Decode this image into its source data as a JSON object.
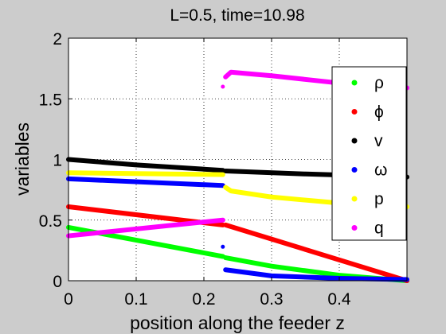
{
  "chart_data": {
    "type": "scatter",
    "title": "L=0.5, time=10.98",
    "xlabel": "position along the feeder z",
    "ylabel": "variables",
    "xlim": [
      0,
      0.5
    ],
    "ylim": [
      0,
      2
    ],
    "xticks": [
      0,
      0.1,
      0.2,
      0.3,
      0.4
    ],
    "xtick_labels": [
      "0",
      "0.1",
      "0.2",
      "0.3",
      "0.4"
    ],
    "yticks": [
      0,
      0.5,
      1,
      1.5,
      2
    ],
    "ytick_labels": [
      "0",
      "0.5",
      "1",
      "1.5",
      "2"
    ],
    "grid": true,
    "legend_position": "top-right",
    "series": [
      {
        "name": "ρ",
        "color": "#00ff00",
        "segments": [
          [
            [
              0,
              0.44
            ],
            [
              0.228,
              0.2
            ]
          ],
          [
            [
              0.232,
              0.19
            ],
            [
              0.3,
              0.12
            ],
            [
              0.4,
              0.045
            ],
            [
              0.5,
              0.0
            ]
          ]
        ]
      },
      {
        "name": "ϕ",
        "color": "#ff0000",
        "segments": [
          [
            [
              0,
              0.61
            ],
            [
              0.228,
              0.46
            ]
          ],
          [
            [
              0.232,
              0.46
            ],
            [
              0.5,
              0.0
            ]
          ]
        ]
      },
      {
        "name": "v",
        "color": "#000000",
        "segments": [
          [
            [
              0,
              1.0
            ],
            [
              0.1,
              0.955
            ],
            [
              0.228,
              0.91
            ]
          ],
          [
            [
              0.232,
              0.905
            ],
            [
              0.35,
              0.88
            ],
            [
              0.5,
              0.855
            ]
          ]
        ]
      },
      {
        "name": "ω",
        "color": "#0000ff",
        "points": [
          [
            0.228,
            0.28
          ]
        ],
        "segments": [
          [
            [
              0,
              0.84
            ],
            [
              0.228,
              0.785
            ]
          ],
          [
            [
              0.232,
              0.09
            ],
            [
              0.3,
              0.04
            ],
            [
              0.4,
              0.02
            ],
            [
              0.5,
              0.01
            ]
          ]
        ]
      },
      {
        "name": "p",
        "color": "#ffff00",
        "segments": [
          [
            [
              0,
              0.89
            ],
            [
              0.228,
              0.875
            ]
          ],
          [
            [
              0.232,
              0.77
            ],
            [
              0.24,
              0.74
            ],
            [
              0.3,
              0.69
            ],
            [
              0.4,
              0.64
            ],
            [
              0.5,
              0.61
            ]
          ]
        ]
      },
      {
        "name": "q",
        "color": "#ff00ff",
        "points": [
          [
            0.228,
            1.6
          ]
        ],
        "segments": [
          [
            [
              0,
              0.37
            ],
            [
              0.228,
              0.5
            ]
          ],
          [
            [
              0.232,
              1.68
            ],
            [
              0.24,
              1.72
            ],
            [
              0.3,
              1.69
            ],
            [
              0.4,
              1.63
            ],
            [
              0.5,
              1.59
            ]
          ]
        ]
      }
    ]
  }
}
